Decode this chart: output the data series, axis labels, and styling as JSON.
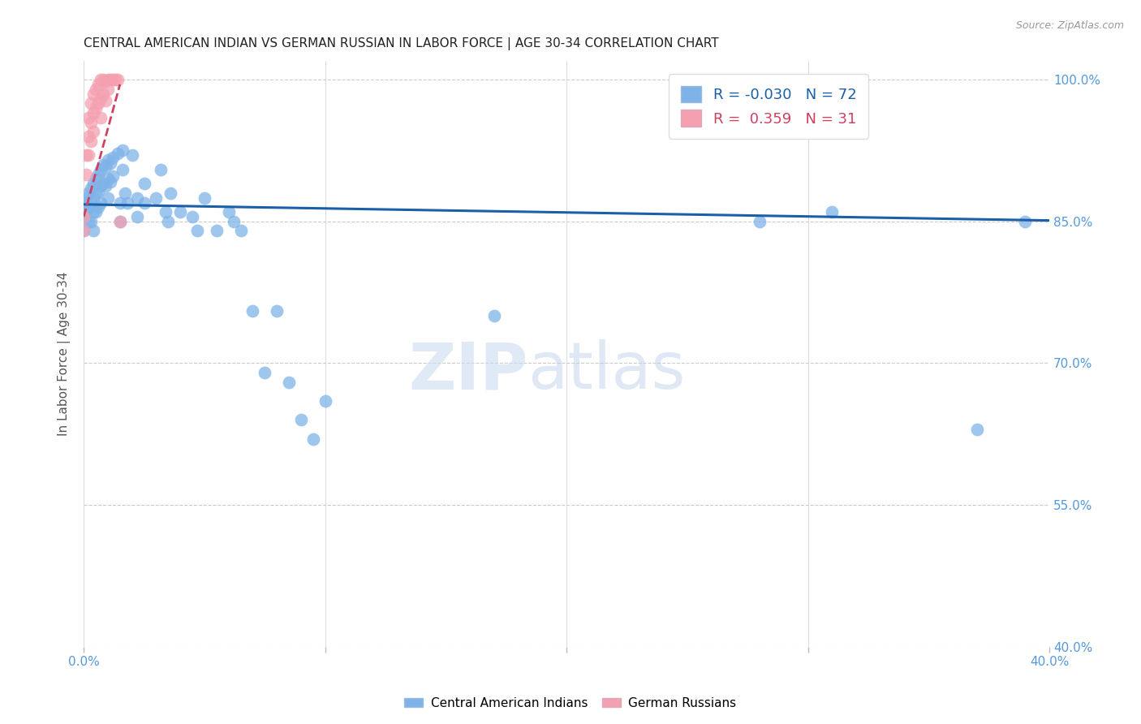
{
  "title": "CENTRAL AMERICAN INDIAN VS GERMAN RUSSIAN IN LABOR FORCE | AGE 30-34 CORRELATION CHART",
  "source": "Source: ZipAtlas.com",
  "ylabel": "In Labor Force | Age 30-34",
  "xlim": [
    0.0,
    0.4
  ],
  "ylim": [
    0.4,
    1.02
  ],
  "yticks": [
    0.4,
    0.55,
    0.7,
    0.85,
    1.0
  ],
  "ytick_labels": [
    "40.0%",
    "55.0%",
    "70.0%",
    "85.0%",
    "100.0%"
  ],
  "xtick_vals": [
    0.0,
    0.1,
    0.2,
    0.3,
    0.4
  ],
  "xtick_labels": [
    "0.0%",
    "",
    "",
    "",
    "40.0%"
  ],
  "blue_R": -0.03,
  "blue_N": 72,
  "pink_R": 0.359,
  "pink_N": 31,
  "blue_color": "#7fb3e8",
  "pink_color": "#f4a0b0",
  "blue_line_color": "#1a5fa8",
  "pink_line_color": "#d04060",
  "grid_color": "#cccccc",
  "legend_label_blue": "Central American Indians",
  "legend_label_pink": "German Russians",
  "blue_x": [
    0.0,
    0.0,
    0.0,
    0.001,
    0.001,
    0.002,
    0.002,
    0.002,
    0.003,
    0.003,
    0.003,
    0.004,
    0.004,
    0.004,
    0.004,
    0.005,
    0.005,
    0.005,
    0.006,
    0.006,
    0.006,
    0.007,
    0.007,
    0.007,
    0.008,
    0.008,
    0.009,
    0.009,
    0.01,
    0.01,
    0.01,
    0.011,
    0.011,
    0.012,
    0.012,
    0.014,
    0.015,
    0.015,
    0.016,
    0.016,
    0.017,
    0.018,
    0.02,
    0.022,
    0.022,
    0.025,
    0.025,
    0.03,
    0.032,
    0.034,
    0.035,
    0.036,
    0.04,
    0.045,
    0.047,
    0.05,
    0.055,
    0.06,
    0.062,
    0.065,
    0.07,
    0.075,
    0.08,
    0.085,
    0.09,
    0.095,
    0.1,
    0.17,
    0.28,
    0.31,
    0.37,
    0.39
  ],
  "blue_y": [
    0.87,
    0.855,
    0.84,
    0.875,
    0.86,
    0.88,
    0.865,
    0.85,
    0.885,
    0.87,
    0.85,
    0.89,
    0.875,
    0.86,
    0.84,
    0.895,
    0.88,
    0.86,
    0.9,
    0.882,
    0.865,
    0.905,
    0.888,
    0.87,
    0.91,
    0.89,
    0.908,
    0.888,
    0.915,
    0.895,
    0.875,
    0.912,
    0.892,
    0.918,
    0.898,
    0.922,
    0.87,
    0.85,
    0.925,
    0.905,
    0.88,
    0.87,
    0.92,
    0.875,
    0.855,
    0.89,
    0.87,
    0.875,
    0.905,
    0.86,
    0.85,
    0.88,
    0.86,
    0.855,
    0.84,
    0.875,
    0.84,
    0.86,
    0.85,
    0.84,
    0.755,
    0.69,
    0.755,
    0.68,
    0.64,
    0.62,
    0.66,
    0.75,
    0.85,
    0.86,
    0.63,
    0.85
  ],
  "pink_x": [
    0.0,
    0.0,
    0.001,
    0.001,
    0.002,
    0.002,
    0.002,
    0.003,
    0.003,
    0.003,
    0.004,
    0.004,
    0.004,
    0.005,
    0.005,
    0.006,
    0.006,
    0.007,
    0.007,
    0.007,
    0.008,
    0.008,
    0.009,
    0.009,
    0.01,
    0.01,
    0.011,
    0.012,
    0.013,
    0.014,
    0.015
  ],
  "pink_y": [
    0.855,
    0.84,
    0.92,
    0.9,
    0.96,
    0.94,
    0.92,
    0.975,
    0.955,
    0.935,
    0.985,
    0.965,
    0.945,
    0.99,
    0.97,
    0.995,
    0.975,
    1.0,
    0.98,
    0.96,
    1.0,
    0.985,
    0.998,
    0.978,
    1.0,
    0.99,
    1.0,
    1.0,
    1.0,
    1.0,
    0.85
  ],
  "blue_line_x": [
    0.0,
    0.4
  ],
  "blue_line_y": [
    0.868,
    0.851
  ],
  "pink_line_x": [
    0.0,
    0.015
  ],
  "pink_line_y": [
    0.855,
    0.995
  ]
}
